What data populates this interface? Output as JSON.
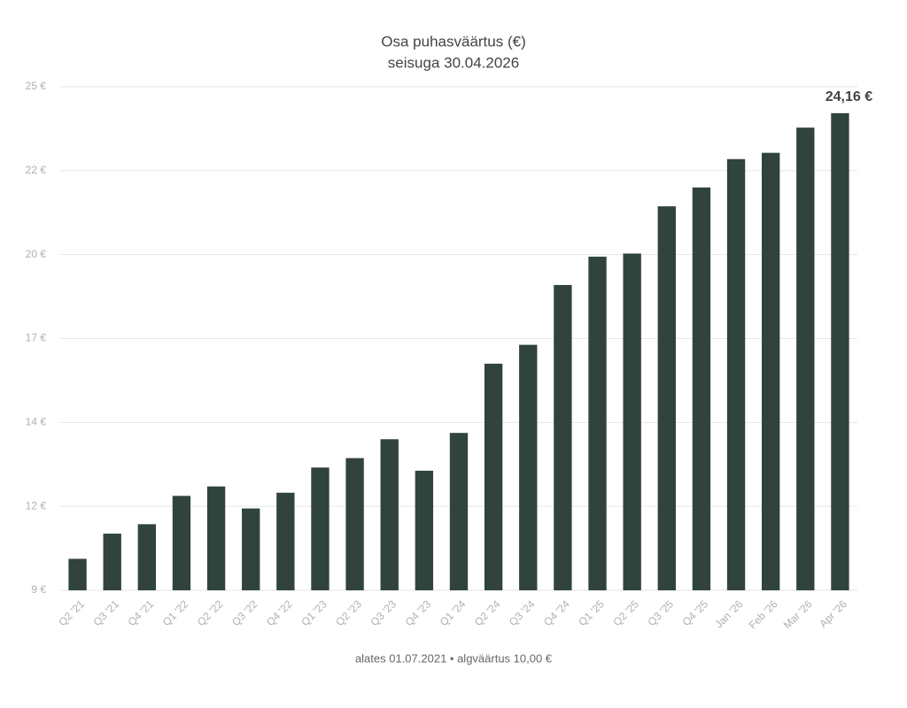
{
  "chart_data": {
    "type": "bar",
    "title": "Osa puhasväärtus (€)",
    "subtitle": "seisuga 30.04.2026",
    "footnote": "alates 01.07.2021 • algväärtus 10,00 €",
    "categories": [
      "Q2 '21",
      "Q3 '21",
      "Q4 '21",
      "Q1 '22",
      "Q2 '22",
      "Q3 '22",
      "Q4 '22",
      "Q1 '23",
      "Q2 '23",
      "Q3 '23",
      "Q4 '23",
      "Q1 '24",
      "Q2 '24",
      "Q3 '24",
      "Q4 '24",
      "Q1 '25",
      "Q2 '25",
      "Q3 '25",
      "Q4 '25",
      "Jan '26",
      "Feb '26",
      "Mar '26",
      "Apr '26"
    ],
    "values": [
      10.0,
      10.8,
      11.1,
      12.0,
      12.3,
      11.6,
      12.1,
      12.9,
      13.2,
      13.8,
      12.8,
      14.0,
      16.2,
      16.8,
      18.7,
      19.6,
      19.7,
      21.2,
      21.8,
      22.7,
      22.9,
      23.7,
      24.16
    ],
    "value_labels": [
      null,
      null,
      null,
      null,
      null,
      null,
      null,
      null,
      null,
      null,
      null,
      null,
      null,
      null,
      null,
      null,
      null,
      null,
      null,
      null,
      null,
      null,
      "24,16 €"
    ],
    "color": "#30433d",
    "ylim": [
      9,
      25
    ],
    "yticks": [
      {
        "value": 9,
        "label": "9 €"
      },
      {
        "value": 11.667,
        "label": "12 €"
      },
      {
        "value": 14.333,
        "label": "14 €"
      },
      {
        "value": 17,
        "label": "17 €"
      },
      {
        "value": 19.667,
        "label": "20 €"
      },
      {
        "value": 22.333,
        "label": "22 €"
      },
      {
        "value": 25,
        "label": "25 €"
      }
    ],
    "grid": true
  }
}
